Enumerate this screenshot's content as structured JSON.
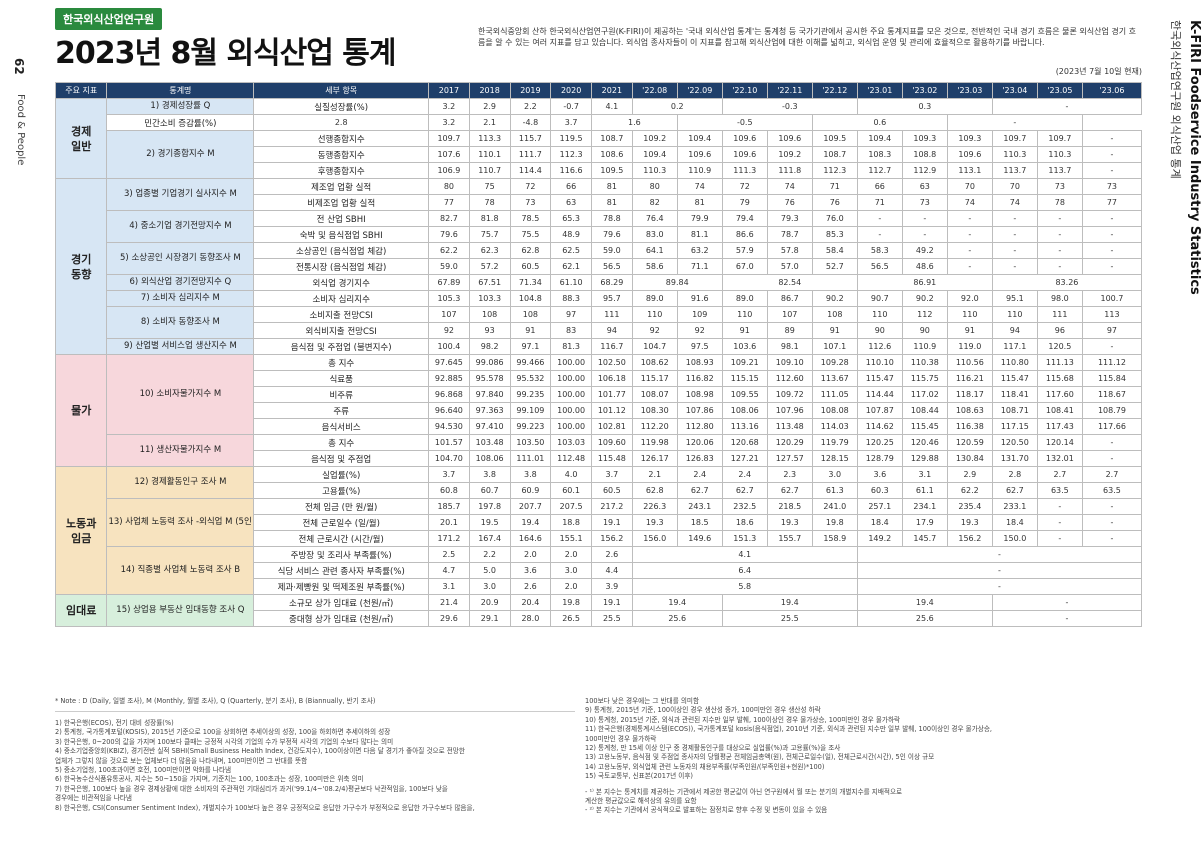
{
  "side": {
    "page_number": "62",
    "magazine": "Food & People",
    "brand_en": "K-FIRI Foodservice Industry Statistics",
    "brand_ko": "한국외식산업연구원 외식산업 통계"
  },
  "header": {
    "org": "한국외식산업연구원",
    "title": "2023년 8월 외식산업 통계",
    "intro": "한국외식중앙회 산하 한국외식산업연구원(K-FIRI)이 제공하는 '국내 외식산업 통계'는 통계청 등 국가기관에서 공시한 주요 통계지표를 모은 것으로, 전반적인 국내 경기 흐름은 물론 외식산업 경기 흐름을 알 수 있는 여러 지표를 담고 있습니다. 외식업 종사자들이 이 지표를 참고해 외식산업에 대한 이해를 넓히고, 외식업 운영 및 관리에 효율적으로 활용하기를 바랍니다.",
    "as_of": "(2023년 7월 10일 현재)"
  },
  "table": {
    "headers": [
      "주요 지표",
      "통계명",
      "세부 항목",
      "2017",
      "2018",
      "2019",
      "2020",
      "2021",
      "'22.08",
      "'22.09",
      "'22.10",
      "'22.11",
      "'22.12",
      "'23.01",
      "'23.02",
      "'23.03",
      "'23.04",
      "'23.05",
      "'23.06"
    ],
    "rows": [
      {
        "major": "경제\n일반",
        "group": "econ",
        "stat": "1) 경제성장률 Q",
        "item": "실질성장률(%)",
        "vals": [
          "3.2",
          "2.9",
          "2.2",
          "-0.7",
          "4.1",
          "0.2",
          null,
          "-0.3",
          null,
          null,
          "0.3",
          null,
          null,
          "-",
          null,
          null
        ]
      },
      {
        "item": "민간소비 증감률(%)",
        "vals": [
          "2.8",
          "3.2",
          "2.1",
          "-4.8",
          "3.7",
          "1.6",
          null,
          "-0.5",
          null,
          null,
          "0.6",
          null,
          null,
          "-",
          null,
          null
        ]
      },
      {
        "stat": "2) 경기종합지수 M",
        "item": "선행종합지수",
        "vals": [
          "109.7",
          "113.3",
          "115.7",
          "119.5",
          "108.7",
          "109.2",
          "109.4",
          "109.6",
          "109.6",
          "109.5",
          "109.4",
          "109.3",
          "109.3",
          "109.7",
          "109.7",
          "-"
        ]
      },
      {
        "item": "동행종합지수",
        "vals": [
          "107.6",
          "110.1",
          "111.7",
          "112.3",
          "108.6",
          "109.4",
          "109.6",
          "109.6",
          "109.2",
          "108.7",
          "108.3",
          "108.8",
          "109.6",
          "110.3",
          "110.3",
          "-"
        ]
      },
      {
        "item": "후행종합지수",
        "vals": [
          "106.9",
          "110.7",
          "114.4",
          "116.6",
          "109.5",
          "110.3",
          "110.9",
          "111.3",
          "111.8",
          "112.3",
          "112.7",
          "112.9",
          "113.1",
          "113.7",
          "113.7",
          "-"
        ]
      },
      {
        "major": "경기\n동향",
        "group": "ind",
        "stat": "3) 업종별 기업경기 실사지수 M",
        "item": "제조업 업황 실적",
        "vals": [
          "80",
          "75",
          "72",
          "66",
          "81",
          "80",
          "74",
          "72",
          "74",
          "71",
          "66",
          "63",
          "70",
          "70",
          "73",
          "73"
        ]
      },
      {
        "item": "비제조업 업황 실적",
        "vals": [
          "77",
          "78",
          "73",
          "63",
          "81",
          "82",
          "81",
          "79",
          "76",
          "76",
          "71",
          "73",
          "74",
          "74",
          "78",
          "77"
        ]
      },
      {
        "stat": "4) 중소기업 경기전망지수 M",
        "item": "전 산업 SBHI",
        "vals": [
          "82.7",
          "81.8",
          "78.5",
          "65.3",
          "78.8",
          "76.4",
          "79.9",
          "79.4",
          "79.3",
          "76.0",
          "-",
          "-",
          "-",
          "-",
          "-",
          "-"
        ]
      },
      {
        "item": "숙박 및 음식점업 SBHI",
        "vals": [
          "79.6",
          "75.7",
          "75.5",
          "48.9",
          "79.6",
          "83.0",
          "81.1",
          "86.6",
          "78.7",
          "85.3",
          "-",
          "-",
          "-",
          "-",
          "-",
          "-"
        ]
      },
      {
        "stat": "5) 소상공인 시장경기 동향조사 M",
        "item": "소상공인 (음식점업 체감)",
        "vals": [
          "62.2",
          "62.3",
          "62.8",
          "62.5",
          "59.0",
          "64.1",
          "63.2",
          "57.9",
          "57.8",
          "58.4",
          "58.3",
          "49.2",
          "-",
          "-",
          "-",
          "-"
        ]
      },
      {
        "item": "전통시장 (음식점업 체감)",
        "vals": [
          "59.0",
          "57.2",
          "60.5",
          "62.1",
          "56.5",
          "58.6",
          "71.1",
          "67.0",
          "57.0",
          "52.7",
          "56.5",
          "48.6",
          "-",
          "-",
          "-",
          "-"
        ]
      },
      {
        "stat": "6) 외식산업 경기전망지수 Q",
        "item": "외식업 경기지수",
        "vals": [
          "67.89",
          "67.51",
          "71.34",
          "61.10",
          "68.29",
          "89.84",
          null,
          "82.54",
          null,
          null,
          "86.91",
          null,
          null,
          "83.26",
          null,
          null
        ]
      },
      {
        "stat": "7) 소비자 심리지수 M",
        "item": "소비자 심리지수",
        "vals": [
          "105.3",
          "103.3",
          "104.8",
          "88.3",
          "95.7",
          "89.0",
          "91.6",
          "89.0",
          "86.7",
          "90.2",
          "90.7",
          "90.2",
          "92.0",
          "95.1",
          "98.0",
          "100.7"
        ]
      },
      {
        "stat": "8) 소비자 동향조사 M",
        "item": "소비지출 전망CSI",
        "vals": [
          "107",
          "108",
          "108",
          "97",
          "111",
          "110",
          "109",
          "110",
          "107",
          "108",
          "110",
          "112",
          "110",
          "110",
          "111",
          "113"
        ]
      },
      {
        "item": "외식비지출 전망CSI",
        "vals": [
          "92",
          "93",
          "91",
          "83",
          "94",
          "92",
          "92",
          "91",
          "89",
          "91",
          "90",
          "90",
          "91",
          "94",
          "96",
          "97"
        ]
      },
      {
        "stat": "9) 산업별 서비스업 생산지수 M",
        "item": "음식점 및 주점업 (불변지수)",
        "vals": [
          "100.4",
          "98.2",
          "97.1",
          "81.3",
          "116.7",
          "104.7",
          "97.5",
          "103.6",
          "98.1",
          "107.1",
          "112.6",
          "110.9",
          "119.0",
          "117.1",
          "120.5",
          "-"
        ]
      },
      {
        "major": "물가",
        "group": "price",
        "stat": "10) 소비자물가지수 M",
        "item": "총 지수",
        "vals": [
          "97.645",
          "99.086",
          "99.466",
          "100.00",
          "102.50",
          "108.62",
          "108.93",
          "109.21",
          "109.10",
          "109.28",
          "110.10",
          "110.38",
          "110.56",
          "110.80",
          "111.13",
          "111.12"
        ]
      },
      {
        "item": "식료품",
        "vals": [
          "92.885",
          "95.578",
          "95.532",
          "100.00",
          "106.18",
          "115.17",
          "116.82",
          "115.15",
          "112.60",
          "113.67",
          "115.47",
          "115.75",
          "116.21",
          "115.47",
          "115.68",
          "115.84"
        ]
      },
      {
        "item": "비주류",
        "vals": [
          "96.868",
          "97.840",
          "99.235",
          "100.00",
          "101.77",
          "108.07",
          "108.98",
          "109.55",
          "109.72",
          "111.05",
          "114.44",
          "117.02",
          "118.17",
          "118.41",
          "117.60",
          "118.67"
        ]
      },
      {
        "item": "주류",
        "vals": [
          "96.640",
          "97.363",
          "99.109",
          "100.00",
          "101.12",
          "108.30",
          "107.86",
          "108.06",
          "107.96",
          "108.08",
          "107.87",
          "108.44",
          "108.63",
          "108.71",
          "108.41",
          "108.79"
        ]
      },
      {
        "item": "음식서비스",
        "vals": [
          "94.530",
          "97.410",
          "99.223",
          "100.00",
          "102.81",
          "112.20",
          "112.80",
          "113.16",
          "113.48",
          "114.03",
          "114.62",
          "115.45",
          "116.38",
          "117.15",
          "117.43",
          "117.66"
        ]
      },
      {
        "stat": "11) 생산자물가지수 M",
        "item": "총 지수",
        "vals": [
          "101.57",
          "103.48",
          "103.50",
          "103.03",
          "109.60",
          "119.98",
          "120.06",
          "120.68",
          "120.29",
          "119.79",
          "120.25",
          "120.46",
          "120.59",
          "120.50",
          "120.14",
          "-"
        ]
      },
      {
        "item": "음식점 및 주점업",
        "vals": [
          "104.70",
          "108.06",
          "111.01",
          "112.48",
          "115.48",
          "126.17",
          "126.83",
          "127.21",
          "127.57",
          "128.15",
          "128.79",
          "129.88",
          "130.84",
          "131.70",
          "132.01",
          "-"
        ]
      },
      {
        "major": "노동과\n임금",
        "group": "labor",
        "stat": "12) 경제활동인구 조사 M",
        "item": "실업률(%)",
        "vals": [
          "3.7",
          "3.8",
          "3.8",
          "4.0",
          "3.7",
          "2.1",
          "2.4",
          "2.4",
          "2.3",
          "3.0",
          "3.6",
          "3.1",
          "2.9",
          "2.8",
          "2.7",
          "2.7"
        ]
      },
      {
        "item": "고용률(%)",
        "vals": [
          "60.8",
          "60.7",
          "60.9",
          "60.1",
          "60.5",
          "62.8",
          "62.7",
          "62.7",
          "62.7",
          "61.3",
          "60.3",
          "61.1",
          "62.2",
          "62.7",
          "63.5",
          "63.5"
        ]
      },
      {
        "stat": "13) 사업체 노동력 조사 -외식업 M (5인 이상)",
        "item": "전체 임금 (만 원/월)",
        "vals": [
          "185.7",
          "197.8",
          "207.7",
          "207.5",
          "217.2",
          "226.3",
          "243.1",
          "232.5",
          "218.5",
          "241.0",
          "257.1",
          "234.1",
          "235.4",
          "233.1",
          "-",
          "-"
        ]
      },
      {
        "item": "전체 근로일수 (일/월)",
        "vals": [
          "20.1",
          "19.5",
          "19.4",
          "18.8",
          "19.1",
          "19.3",
          "18.5",
          "18.6",
          "19.3",
          "19.8",
          "18.4",
          "17.9",
          "19.3",
          "18.4",
          "-",
          "-"
        ]
      },
      {
        "item": "전체 근로시간 (시간/월)",
        "vals": [
          "171.2",
          "167.4",
          "164.6",
          "155.1",
          "156.2",
          "156.0",
          "149.6",
          "151.3",
          "155.7",
          "158.9",
          "149.2",
          "145.7",
          "156.2",
          "150.0",
          "-",
          "-"
        ]
      },
      {
        "stat": "14) 직종별 사업체 노동력 조사 B",
        "item": "주방장 및 조리사 부족률(%)",
        "vals": [
          "2.5",
          "2.2",
          "2.0",
          "2.0",
          "2.6",
          "4.1",
          null,
          null,
          null,
          null,
          "-",
          null,
          null,
          null,
          null,
          null
        ]
      },
      {
        "item": "식당 서비스 관련 종사자 부족률(%)",
        "vals": [
          "4.7",
          "5.0",
          "3.6",
          "3.0",
          "4.4",
          "6.4",
          null,
          null,
          null,
          null,
          "-",
          null,
          null,
          null,
          null,
          null
        ]
      },
      {
        "item": "제과·제빵원 및 떡제조원 부족률(%)",
        "vals": [
          "3.1",
          "3.0",
          "2.6",
          "2.0",
          "3.9",
          "5.8",
          null,
          null,
          null,
          null,
          "-",
          null,
          null,
          null,
          null,
          null
        ]
      },
      {
        "major": "임대료",
        "group": "rent",
        "stat": "15) 상업용 부동산 임대동향 조사 Q",
        "item": "소규모 상가 임대료 (천원/㎡)",
        "vals": [
          "21.4",
          "20.9",
          "20.4",
          "19.8",
          "19.1",
          "19.4",
          null,
          "19.4",
          null,
          null,
          "19.4",
          null,
          null,
          "-",
          null,
          null
        ]
      },
      {
        "item": "중대형 상가 임대료 (천원/㎡)",
        "vals": [
          "29.6",
          "29.1",
          "28.0",
          "26.5",
          "25.5",
          "25.6",
          null,
          "25.5",
          null,
          null,
          "25.6",
          null,
          null,
          "-",
          null,
          null
        ]
      }
    ]
  },
  "notes": {
    "legend": "* Note : D (Daily, 일별 조사), M (Monthly, 월별 조사), Q (Quarterly, 분기 조사), B (Biannually, 반기 조사)",
    "left": [
      "1) 한국은행(ECOS), 전기 대비 성장률(%)",
      "2) 통계청, 국가통계포털(KOSIS), 2015년 기준으로 100을 상회하면 추세이상의 성장, 100을 하회하면 추세이하의 성장",
      "3) 한국은행, 0~200의 값을 가지며 100보다 클때는 긍정적 시각의 기업의 수가 부정적 시각의 기업의 수보다 많다는 의미",
      "4) 중소기업중앙회(KBIZ), 경기전반 실적 SBHI(Small Business Health Index, 건강도지수), 100이상이면 다음 달 경기가 좋아질 것으로 전망한",
      "   업체가 그렇지 않을 것으로 보는 업체보다 더 많음을 나타내며, 100미만이면 그 반대를 뜻함",
      "5) 중소기업청, 100초과이면 호전, 100미만이면 악화를 나타냄",
      "6) 한국농수산식품유통공사, 지수는 50~150을 가지며, 기준치는 100, 100초과는 성장, 100미만은 위축 의미",
      "7) 한국은행, 100보다 높을 경우 경제상황에 대한 소비자의 주관적인 기대심리가 과거('99.1/4~'08.2/4)평균보다 낙관적임을, 100보다 낮을",
      "   경우에는 비관적임을 나타냄",
      "8) 한국은행, CSI(Consumer Sentiment Index), 개별지수가 100보다 높은 경우 긍정적으로 응답한 가구수가 부정적으로 응답한 가구수보다 많음을,"
    ],
    "right": [
      "100보다 낮은 경우에는 그 반대를 의미함",
      "9) 통계청, 2015년 기준, 100이상인 경우 생산성 증가, 100미만인 경우 생산성 하락",
      "10) 통계청, 2015년 기준, 외식과 관련된 지수만 일부 발췌, 100이상인 경우 물가상승, 100미만인 경우 물가하락",
      "11) 한국은행(경제통계시스템(ECOS)), 국가통계포털 kosis(음식점업), 2010년 기준, 외식과 관련된 지수만 일부 발췌, 100이상인 경우 물가상승,",
      "    100미만인 경우 물가하락",
      "12) 통계청, 만 15세 이상 인구 중 경제활동인구를 대상으로 실업률(%)과 고용률(%)을 조사",
      "13) 고용노동부, 음식점 및 주점업 종사자의 당월평균 전체임금총액(원), 전체근로일수(일), 전체근로시간(시간), 5인 이상 규모",
      "14) 고용노동부, 외식업체 관련 노동자의 채용부족률(부족인원/(부족인원+현원)*100)",
      "15) 국토교통부, 신표본(2017년 이후)"
    ],
    "extra": [
      "- ¹⁾ 본 지수는 통계치를 제공하는 기관에서 제공한 평균값이 아닌 연구원에서 월 또는 분기의 개별지수를 지배적으로",
      "   계산한 평균값으로 해석상의 유의를 요함",
      "- ²⁾ 본 지수는 기관에서 공식적으로 발표하는 잠정치로 향후 수정 및 변동이 있을 수 있음"
    ]
  }
}
